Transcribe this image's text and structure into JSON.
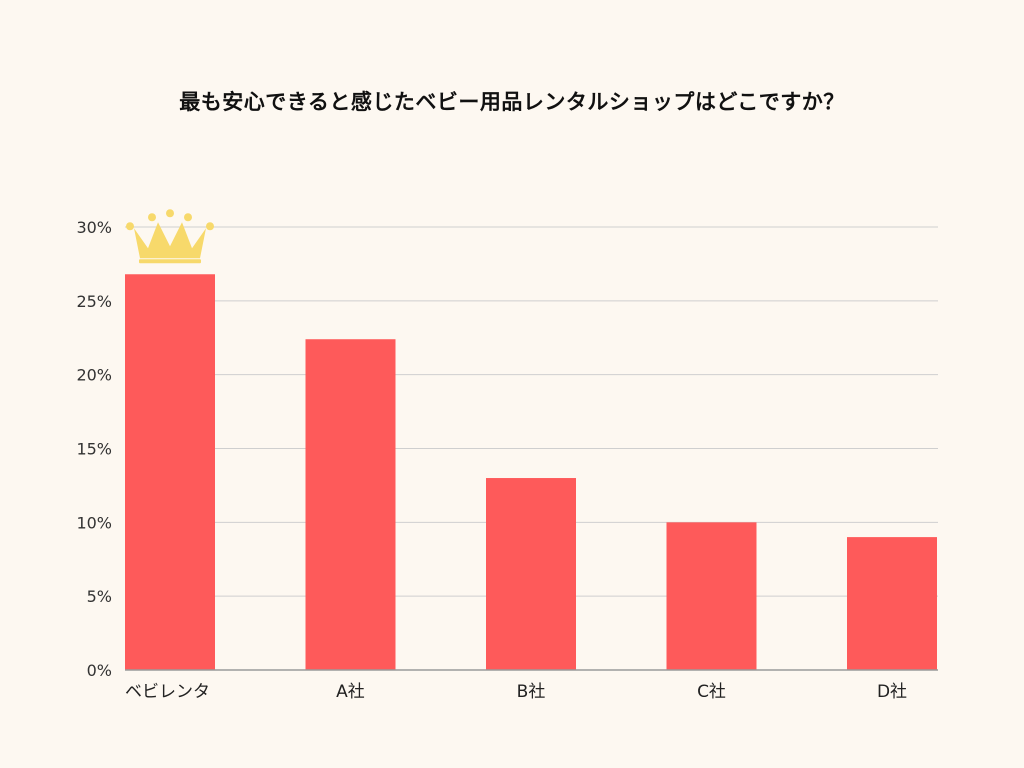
{
  "colors": {
    "background": "#fdf8f1",
    "bar": "#fe5a5a",
    "grid": "#cfcfcf",
    "axis": "#9a9a9a",
    "crown": "#f7d96b"
  },
  "winner_icon": "crown-icon",
  "chart_data": {
    "type": "bar",
    "title": "最も安心できると感じたベビー用品レンタルショップはどこですか？",
    "xlabel": "",
    "ylabel": "",
    "categories": [
      "ベビレンタ",
      "A社",
      "B社",
      "C社",
      "D社"
    ],
    "values": [
      26.8,
      22.4,
      13.0,
      10.0,
      9.0
    ],
    "ylim": [
      0,
      30
    ],
    "yticks": [
      "0%",
      "5%",
      "10%",
      "15%",
      "20%",
      "25%",
      "30%"
    ],
    "grid": true,
    "legend": "none"
  }
}
